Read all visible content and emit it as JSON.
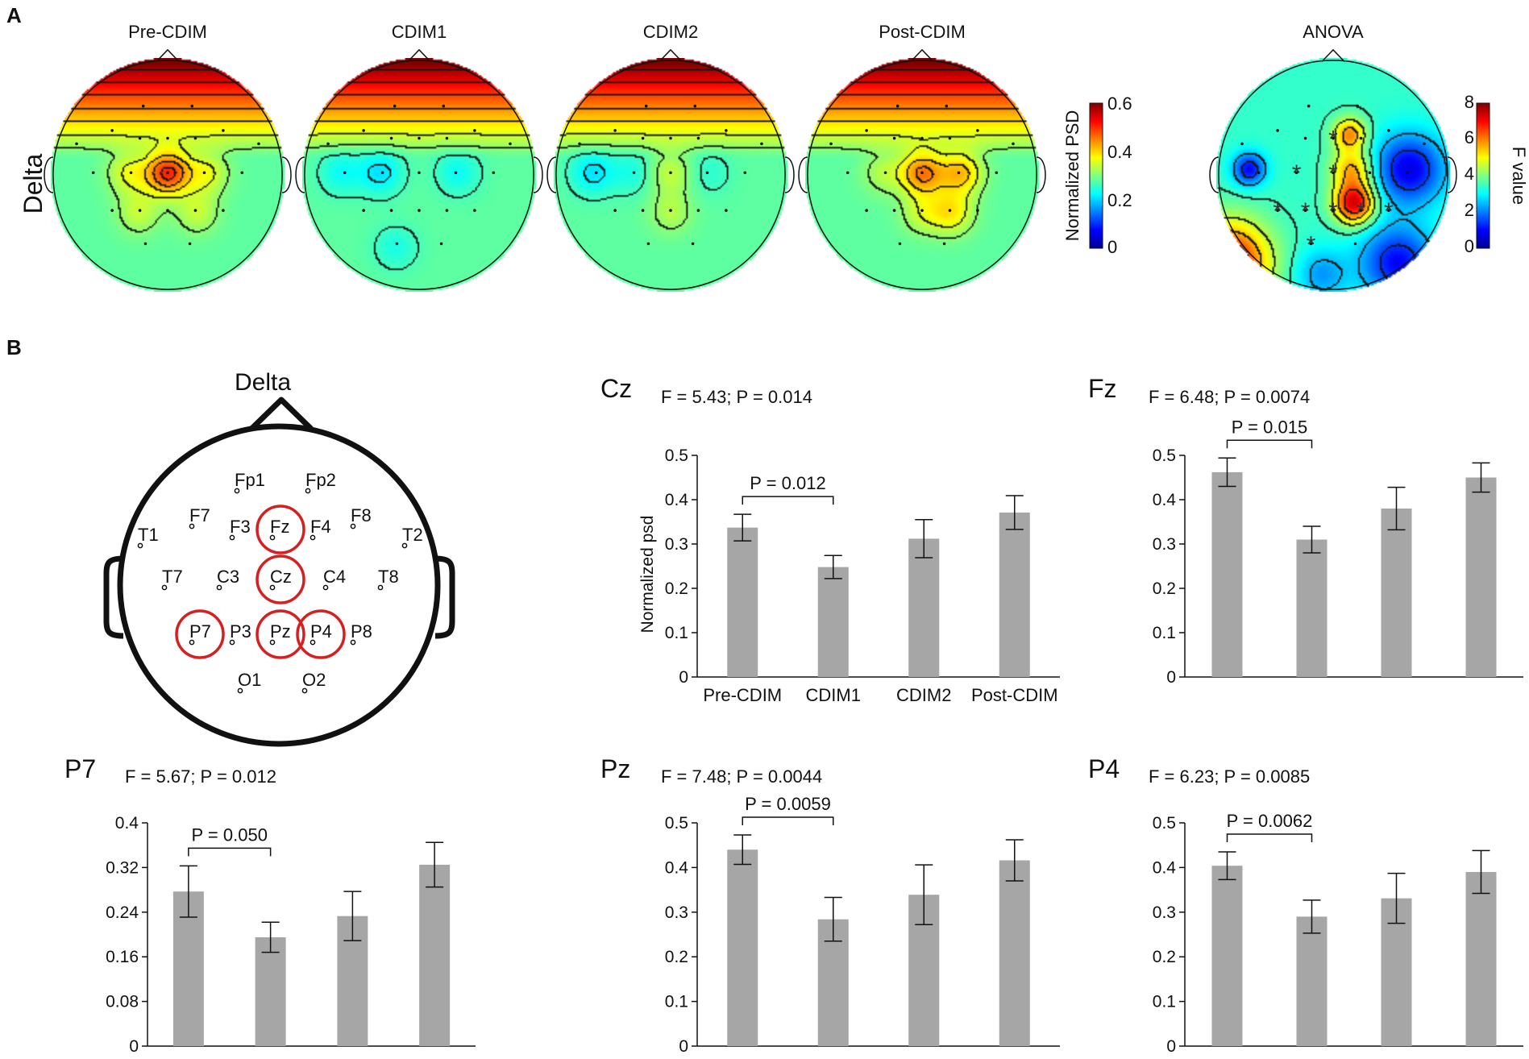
{
  "panel_a": {
    "label": "A",
    "band": "Delta",
    "maps": [
      {
        "title": "Pre-CDIM",
        "blobs": [
          {
            "e": "Cz",
            "v": 0.22
          },
          {
            "e": "C3",
            "v": 0.08
          },
          {
            "e": "C4",
            "v": 0.08
          },
          {
            "e": "P3",
            "v": 0.06
          },
          {
            "e": "P4",
            "v": 0.06
          }
        ]
      },
      {
        "title": "CDIM1",
        "blobs": [
          {
            "e": "C3",
            "v": -0.07
          },
          {
            "e": "T7",
            "v": -0.05
          },
          {
            "e": "C4",
            "v": -0.05
          },
          {
            "e": "O1",
            "v": -0.04
          }
        ]
      },
      {
        "title": "CDIM2",
        "blobs": [
          {
            "e": "T7",
            "v": -0.07
          },
          {
            "e": "C3",
            "v": -0.04
          },
          {
            "e": "Cz",
            "v": 0.06
          },
          {
            "e": "Pz",
            "v": 0.05
          },
          {
            "e": "C4",
            "v": -0.03
          }
        ]
      },
      {
        "title": "Post-CDIM",
        "blobs": [
          {
            "e": "Cz",
            "v": 0.17
          },
          {
            "e": "C4",
            "v": 0.13
          },
          {
            "e": "P4",
            "v": 0.1
          },
          {
            "e": "C3",
            "v": 0.05
          },
          {
            "e": "Pz",
            "v": 0.06
          }
        ]
      }
    ],
    "colorbar_psd": {
      "label": "Normalized PSD",
      "ticks": [
        "0.6",
        "0.4",
        "0.2",
        "0"
      ],
      "min": 0,
      "max": 0.6
    },
    "anova": {
      "title": "ANOVA",
      "colorbar": {
        "label": "F value",
        "ticks": [
          "8",
          "6",
          "4",
          "2",
          "0"
        ],
        "min": 0,
        "max": 8
      },
      "significant": [
        "Fz",
        "Cz",
        "C3",
        "Pz",
        "P3",
        "P4",
        "P7",
        "P8",
        "O1"
      ]
    }
  },
  "panel_b": {
    "label": "B",
    "head_title": "Delta",
    "electrodes": [
      "Fp1",
      "Fp2",
      "F7",
      "F3",
      "Fz",
      "F4",
      "F8",
      "T1",
      "T2",
      "T7",
      "C3",
      "Cz",
      "C4",
      "T8",
      "P7",
      "P3",
      "Pz",
      "P4",
      "P8",
      "O1",
      "O2"
    ],
    "highlighted": [
      "Fz",
      "Cz",
      "P7",
      "Pz",
      "P4"
    ],
    "highlight_color": "#d42020"
  },
  "chart_data": [
    {
      "type": "bar",
      "electrode": "Cz",
      "stats": "F = 5.43; P = 0.014",
      "categories": [
        "Pre-CDIM",
        "CDIM1",
        "CDIM2",
        "Post-CDIM"
      ],
      "values": [
        0.337,
        0.248,
        0.312,
        0.371
      ],
      "errors": [
        0.03,
        0.026,
        0.043,
        0.038
      ],
      "ylim": [
        0,
        0.5
      ],
      "yticks": [
        "0",
        "0.1",
        "0.2",
        "0.3",
        "0.4",
        "0.5"
      ],
      "ylabel": "Normalized psd",
      "xlabel": "",
      "comparison": {
        "pair": [
          0,
          1
        ],
        "label": "P = 0.012"
      },
      "bar_color": "#a6a6a6"
    },
    {
      "type": "bar",
      "electrode": "Fz",
      "stats": "F = 6.48; P = 0.0074",
      "categories": [
        "Pre-CDIM",
        "CDIM1",
        "CDIM2",
        "Post-CDIM"
      ],
      "values": [
        0.462,
        0.31,
        0.38,
        0.45
      ],
      "errors": [
        0.032,
        0.03,
        0.048,
        0.033
      ],
      "ylim": [
        0,
        0.5
      ],
      "yticks": [
        "0",
        "0.1",
        "0.2",
        "0.3",
        "0.4",
        "0.5"
      ],
      "ylabel": "",
      "xlabel": "",
      "comparison": {
        "pair": [
          0,
          1
        ],
        "label": "P = 0.015"
      },
      "bar_color": "#a6a6a6"
    },
    {
      "type": "bar",
      "electrode": "P7",
      "stats": "F = 5.67; P = 0.012",
      "categories": [
        "Pre-CDIM",
        "CDIM1",
        "CDIM2",
        "Post-CDIM"
      ],
      "values": [
        0.277,
        0.195,
        0.233,
        0.325
      ],
      "errors": [
        0.046,
        0.027,
        0.044,
        0.04
      ],
      "ylim": [
        0,
        0.4
      ],
      "yticks": [
        "0",
        "0.08",
        "0.16",
        "0.24",
        "0.32",
        "0.4"
      ],
      "ylabel": "",
      "xlabel": "",
      "comparison": {
        "pair": [
          0,
          1
        ],
        "label": "P = 0.050"
      },
      "bar_color": "#a6a6a6"
    },
    {
      "type": "bar",
      "electrode": "Pz",
      "stats": "F = 7.48; P = 0.0044",
      "categories": [
        "Pre-CDIM",
        "CDIM1",
        "CDIM2",
        "Post-CDIM"
      ],
      "values": [
        0.44,
        0.284,
        0.339,
        0.416
      ],
      "errors": [
        0.033,
        0.049,
        0.067,
        0.046
      ],
      "ylim": [
        0,
        0.5
      ],
      "yticks": [
        "0",
        "0.1",
        "0.2",
        "0.3",
        "0.4",
        "0.5"
      ],
      "ylabel": "",
      "xlabel": "",
      "comparison": {
        "pair": [
          0,
          1
        ],
        "label": "P = 0.0059"
      },
      "bar_color": "#a6a6a6"
    },
    {
      "type": "bar",
      "electrode": "P4",
      "stats": "F = 6.23; P = 0.0085",
      "categories": [
        "Pre-CDIM",
        "CDIM1",
        "CDIM2",
        "Post-CDIM"
      ],
      "values": [
        0.404,
        0.29,
        0.331,
        0.39
      ],
      "errors": [
        0.031,
        0.037,
        0.056,
        0.048
      ],
      "ylim": [
        0,
        0.5
      ],
      "yticks": [
        "0",
        "0.1",
        "0.2",
        "0.3",
        "0.4",
        "0.5"
      ],
      "ylabel": "",
      "xlabel": "",
      "comparison": {
        "pair": [
          0,
          1
        ],
        "label": "P = 0.0062"
      },
      "bar_color": "#a6a6a6"
    }
  ]
}
